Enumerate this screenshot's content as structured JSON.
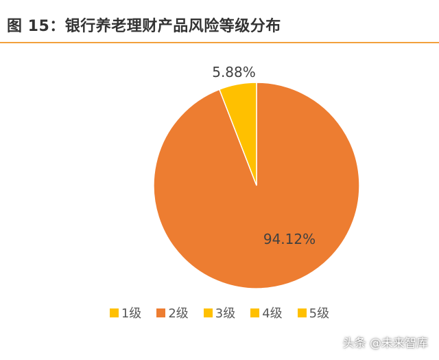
{
  "figure_title": "图 15：银行养老理财产品风险等级分布",
  "watermark": "头条 @未来智库",
  "chart_data": {
    "type": "pie",
    "title": "",
    "categories": [
      "1级",
      "2级",
      "3级",
      "4级",
      "5级"
    ],
    "values": [
      0,
      94.12,
      5.88,
      0,
      0
    ],
    "data_labels": [
      "",
      "94.12%",
      "5.88%",
      "",
      ""
    ],
    "colors": [
      "#ffc000",
      "#ed7d31",
      "#ffc000",
      "#ffc000",
      "#ffc000"
    ],
    "legend_position": "bottom",
    "start": "12 o'clock",
    "direction": "clockwise"
  }
}
